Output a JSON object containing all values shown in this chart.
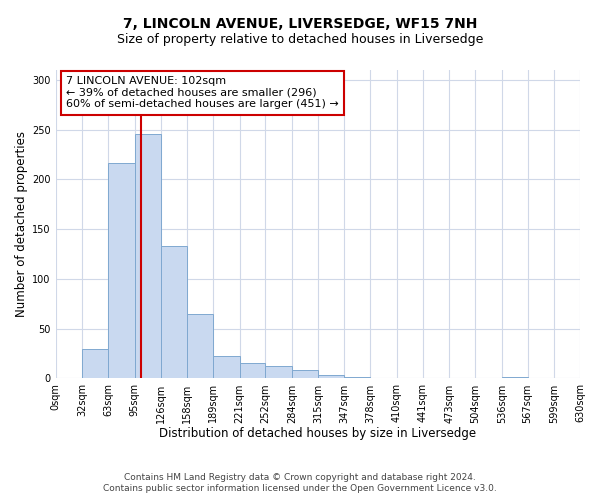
{
  "title": "7, LINCOLN AVENUE, LIVERSEDGE, WF15 7NH",
  "subtitle": "Size of property relative to detached houses in Liversedge",
  "xlabel": "Distribution of detached houses by size in Liversedge",
  "ylabel": "Number of detached properties",
  "bar_edges": [
    0,
    32,
    63,
    95,
    126,
    158,
    189,
    221,
    252,
    284,
    315,
    347,
    378,
    410,
    441,
    473,
    504,
    536,
    567,
    599,
    630
  ],
  "bar_heights": [
    0,
    30,
    217,
    246,
    133,
    65,
    23,
    16,
    13,
    9,
    3,
    1,
    0,
    0,
    0,
    0,
    0,
    1,
    0,
    0
  ],
  "bar_color": "#c9d9f0",
  "bar_edge_color": "#7fa8d0",
  "vline_x": 102,
  "vline_color": "#cc0000",
  "ylim": [
    0,
    310
  ],
  "yticks": [
    0,
    50,
    100,
    150,
    200,
    250,
    300
  ],
  "xtick_labels": [
    "0sqm",
    "32sqm",
    "63sqm",
    "95sqm",
    "126sqm",
    "158sqm",
    "189sqm",
    "221sqm",
    "252sqm",
    "284sqm",
    "315sqm",
    "347sqm",
    "378sqm",
    "410sqm",
    "441sqm",
    "473sqm",
    "504sqm",
    "536sqm",
    "567sqm",
    "599sqm",
    "630sqm"
  ],
  "annotation_title": "7 LINCOLN AVENUE: 102sqm",
  "annotation_line1": "← 39% of detached houses are smaller (296)",
  "annotation_line2": "60% of semi-detached houses are larger (451) →",
  "annotation_box_color": "#ffffff",
  "annotation_box_edge": "#cc0000",
  "footer1": "Contains HM Land Registry data © Crown copyright and database right 2024.",
  "footer2": "Contains public sector information licensed under the Open Government Licence v3.0.",
  "bg_color": "#ffffff",
  "grid_color": "#d0d8e8",
  "title_fontsize": 10,
  "subtitle_fontsize": 9,
  "axis_label_fontsize": 8.5,
  "tick_fontsize": 7,
  "annotation_fontsize": 8,
  "footer_fontsize": 6.5
}
